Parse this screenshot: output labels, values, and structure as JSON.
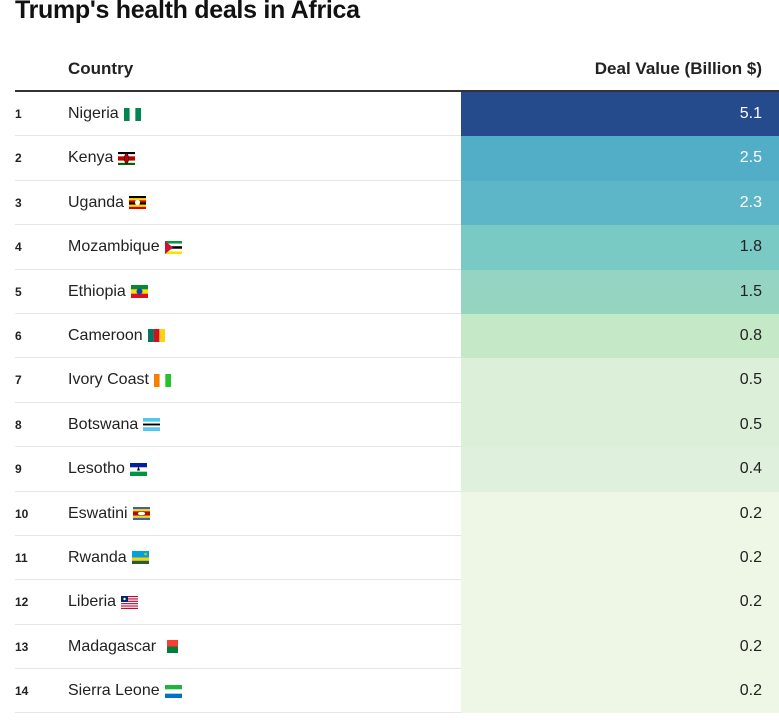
{
  "title": "Trump's health deals in Africa",
  "chart_data": {
    "type": "table",
    "title": "Trump's health deals in Africa",
    "columns": [
      "",
      "Country",
      "Deal Value (Billion $)"
    ],
    "rows": [
      {
        "rank": "1",
        "country": "Nigeria",
        "flag": "nigeria-flag-icon",
        "value": 5.1,
        "color": "#254b8c",
        "text_color": "#ffffff"
      },
      {
        "rank": "2",
        "country": "Kenya",
        "flag": "kenya-flag-icon",
        "value": 2.5,
        "color": "#52adc7",
        "text_color": "#ffffff"
      },
      {
        "rank": "3",
        "country": "Uganda",
        "flag": "uganda-flag-icon",
        "value": 2.3,
        "color": "#5db5c8",
        "text_color": "#ffffff"
      },
      {
        "rank": "4",
        "country": "Mozambique",
        "flag": "mozambique-flag-icon",
        "value": 1.8,
        "color": "#79c9c5",
        "text_color": "#222222"
      },
      {
        "rank": "5",
        "country": "Ethiopia",
        "flag": "ethiopia-flag-icon",
        "value": 1.5,
        "color": "#96d4c2",
        "text_color": "#222222"
      },
      {
        "rank": "6",
        "country": "Cameroon",
        "flag": "cameroon-flag-icon",
        "value": 0.8,
        "color": "#c5e8c7",
        "text_color": "#222222"
      },
      {
        "rank": "7",
        "country": "Ivory Coast",
        "flag": "ivory-coast-flag-icon",
        "value": 0.5,
        "color": "#dcf0d9",
        "text_color": "#222222"
      },
      {
        "rank": "8",
        "country": "Botswana",
        "flag": "botswana-flag-icon",
        "value": 0.5,
        "color": "#dcf0d9",
        "text_color": "#222222"
      },
      {
        "rank": "9",
        "country": "Lesotho",
        "flag": "lesotho-flag-icon",
        "value": 0.4,
        "color": "#dff1dc",
        "text_color": "#222222"
      },
      {
        "rank": "10",
        "country": "Eswatini",
        "flag": "eswatini-flag-icon",
        "value": 0.2,
        "color": "#eef7e6",
        "text_color": "#222222"
      },
      {
        "rank": "11",
        "country": "Rwanda",
        "flag": "rwanda-flag-icon",
        "value": 0.2,
        "color": "#eef7e6",
        "text_color": "#222222"
      },
      {
        "rank": "12",
        "country": "Liberia",
        "flag": "liberia-flag-icon",
        "value": 0.2,
        "color": "#eef7e6",
        "text_color": "#222222"
      },
      {
        "rank": "13",
        "country": "Madagascar",
        "flag": "madagascar-flag-icon",
        "value": 0.2,
        "color": "#eef7e6",
        "text_color": "#222222"
      },
      {
        "rank": "14",
        "country": "Sierra Leone",
        "flag": "sierra-leone-flag-icon",
        "value": 0.2,
        "color": "#eef7e6",
        "text_color": "#222222"
      }
    ]
  }
}
